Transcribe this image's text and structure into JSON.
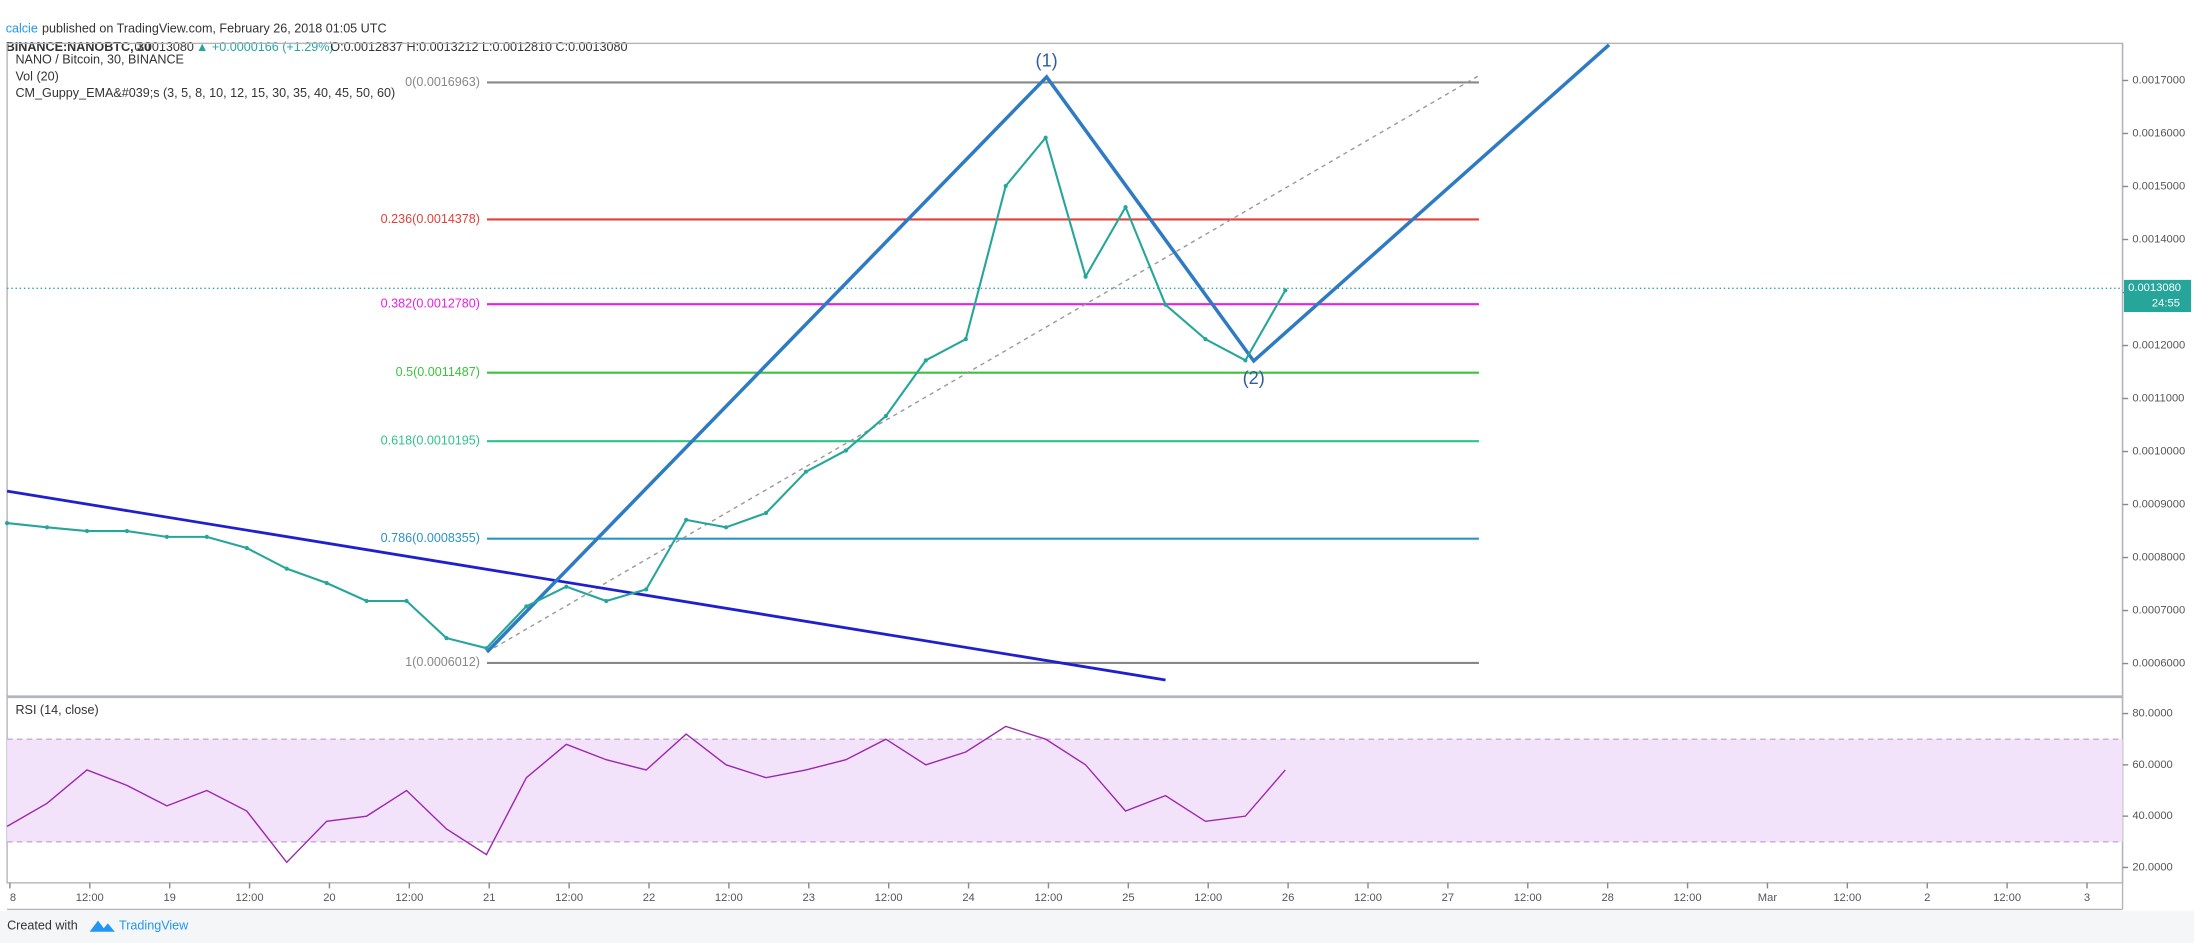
{
  "header": {
    "author": "calcie",
    "published": "published on TradingView.com, February 26, 2018 01:05 UTC",
    "symbol": "BINANCE:NANOBTC, 30",
    "last": "0.0013080",
    "change": "▲ +0.0000166 (+1.29%)",
    "ohlc": "O:0.0012837 H:0.0013212 L:0.0012810 C:0.0013080"
  },
  "legend": [
    "NANO / Bitcoin, 30, BINANCE",
    "Vol (20)",
    "CM_Guppy_EMA&#039;s (3, 5, 8, 10, 12, 15, 30, 35, 40, 45, 50, 60)"
  ],
  "price_axis": {
    "ylim": [
      0.00054,
      0.00177
    ],
    "ticks": [
      {
        "value": 0.0006,
        "label": "0.0006000"
      },
      {
        "value": 0.0007,
        "label": "0.0007000"
      },
      {
        "value": 0.0008,
        "label": "0.0008000"
      },
      {
        "value": 0.0009,
        "label": "0.0009000"
      },
      {
        "value": 0.001,
        "label": "0.0010000"
      },
      {
        "value": 0.0011,
        "label": "0.0011000"
      },
      {
        "value": 0.0012,
        "label": "0.0012000"
      },
      {
        "value": 0.0013,
        "label": "0.0013000"
      },
      {
        "value": 0.0014,
        "label": "0.0014000"
      },
      {
        "value": 0.0015,
        "label": "0.0015000"
      },
      {
        "value": 0.0016,
        "label": "0.0016000"
      },
      {
        "value": 0.0017,
        "label": "0.0017000"
      }
    ],
    "last_price": {
      "value": 0.001308,
      "label": "0.0013080"
    },
    "countdown": "24:55"
  },
  "fib": [
    {
      "label": "0(0.0016963)",
      "price": 0.0016963,
      "color": "#888888"
    },
    {
      "label": "0.236(0.0014378)",
      "price": 0.0014378,
      "color": "#e0403a"
    },
    {
      "label": "0.382(0.0012780)",
      "price": 0.001278,
      "color": "#e91ee9"
    },
    {
      "label": "0.5(0.0011487)",
      "price": 0.0011487,
      "color": "#3cc23c"
    },
    {
      "label": "0.618(0.0010195)",
      "price": 0.0010195,
      "color": "#2fc28a"
    },
    {
      "label": "0.786(0.0008355)",
      "price": 0.0008355,
      "color": "#2a93c9"
    },
    {
      "label": "1(0.0006012)",
      "price": 0.0006012,
      "color": "#888888"
    }
  ],
  "waves": [
    "(1)",
    "(2)"
  ],
  "price": {
    "color": "#26a69a",
    "close": [
      0.000865,
      0.000857,
      0.00085,
      0.00085,
      0.000839,
      0.000839,
      0.000818,
      0.000779,
      0.000752,
      0.000718,
      0.000718,
      0.000648,
      0.000629,
      0.000708,
      0.000745,
      0.000718,
      0.00074,
      0.000871,
      0.000857,
      0.000884,
      0.000962,
      0.001002,
      0.001067,
      0.001172,
      0.001212,
      0.001501,
      0.001592,
      0.00133,
      0.001461,
      0.001277,
      0.001212,
      0.001172,
      0.001304
    ]
  },
  "rsi": {
    "title": "RSI (14, close)",
    "color": "#9c27b0",
    "ylim": [
      14,
      86
    ],
    "band": [
      30,
      70
    ],
    "ticks": [
      {
        "value": 20,
        "label": "20.0000"
      },
      {
        "value": 40,
        "label": "40.0000"
      },
      {
        "value": 60,
        "label": "60.0000"
      },
      {
        "value": 80,
        "label": "80.0000"
      }
    ],
    "values": [
      36,
      45,
      58,
      52,
      44,
      50,
      42,
      22,
      38,
      40,
      50,
      35,
      25,
      55,
      68,
      62,
      58,
      72,
      60,
      55,
      58,
      62,
      70,
      60,
      65,
      75,
      70,
      60,
      42,
      48,
      38,
      40,
      58
    ]
  },
  "time_axis": [
    "8",
    "12:00",
    "19",
    "12:00",
    "20",
    "12:00",
    "21",
    "12:00",
    "22",
    "12:00",
    "23",
    "12:00",
    "24",
    "12:00",
    "25",
    "12:00",
    "26",
    "12:00",
    "27",
    "12:00",
    "28",
    "12:00",
    "Mar",
    "12:00",
    "2",
    "12:00",
    "3"
  ],
  "footer": {
    "created": "Created with",
    "brand": "TradingView"
  }
}
